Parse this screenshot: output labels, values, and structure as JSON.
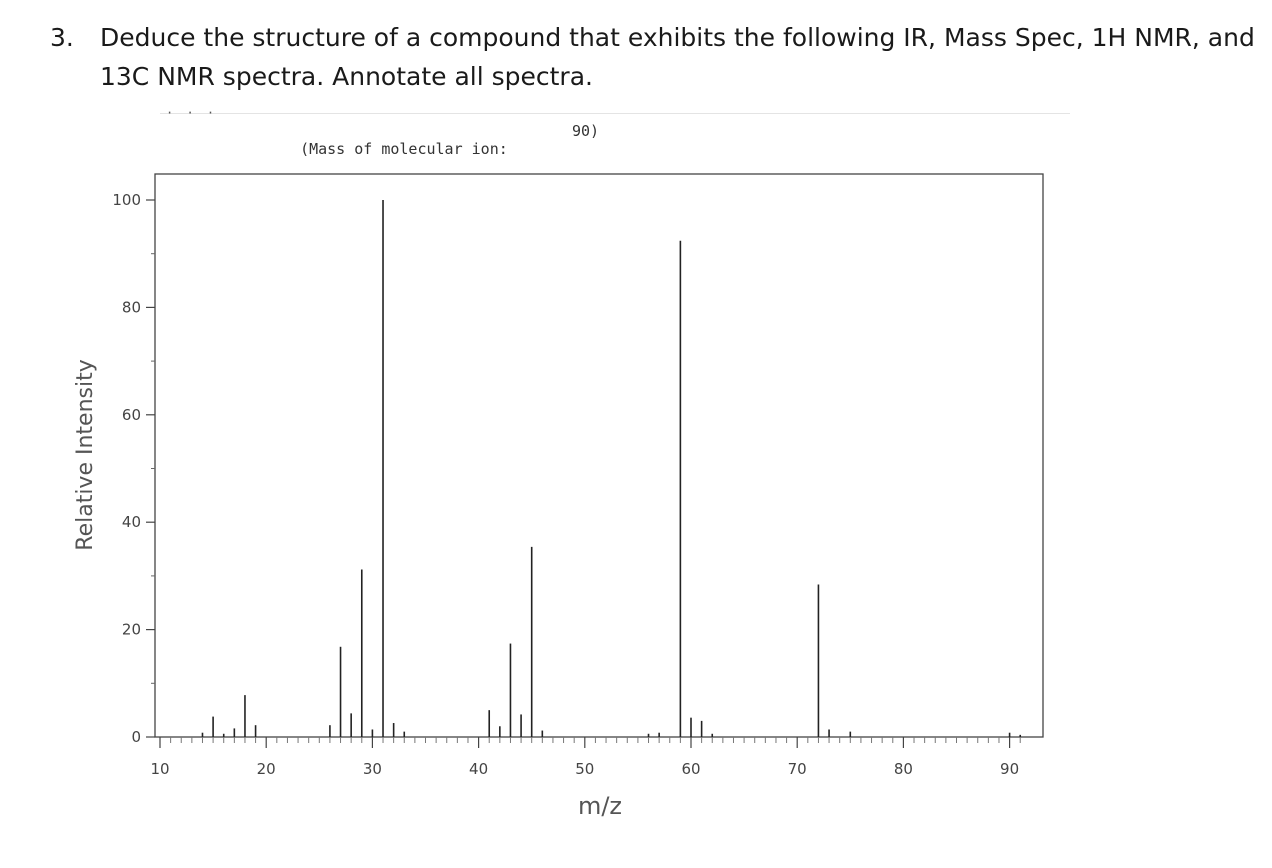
{
  "question": {
    "number": "3.",
    "text": "Deduce the structure of a compound that exhibits the following IR, Mass Spec, 1H NMR, and 13C NMR spectra. Annotate all spectra."
  },
  "header": {
    "molecular_ion_label": "(Mass of molecular ion:",
    "molecular_ion_value": "90)"
  },
  "chart_data": {
    "type": "bar",
    "title": "",
    "xlabel": "m/z",
    "ylabel": "Relative Intensity",
    "xlim": [
      10,
      92
    ],
    "ylim": [
      0,
      105
    ],
    "x_ticks": [
      10,
      20,
      30,
      40,
      50,
      60,
      70,
      80,
      90
    ],
    "y_ticks": [
      0,
      20,
      40,
      60,
      80,
      100
    ],
    "grid": false,
    "legend": "none",
    "peaks": [
      {
        "mz": 14,
        "intensity": 0.8
      },
      {
        "mz": 15,
        "intensity": 3.8
      },
      {
        "mz": 16,
        "intensity": 0.6
      },
      {
        "mz": 17,
        "intensity": 1.6
      },
      {
        "mz": 18,
        "intensity": 7.8
      },
      {
        "mz": 19,
        "intensity": 2.2
      },
      {
        "mz": 26,
        "intensity": 2.2
      },
      {
        "mz": 27,
        "intensity": 16.8
      },
      {
        "mz": 28,
        "intensity": 4.4
      },
      {
        "mz": 29,
        "intensity": 31.2
      },
      {
        "mz": 30,
        "intensity": 1.4
      },
      {
        "mz": 31,
        "intensity": 100
      },
      {
        "mz": 32,
        "intensity": 2.6
      },
      {
        "mz": 33,
        "intensity": 1.0
      },
      {
        "mz": 41,
        "intensity": 5.0
      },
      {
        "mz": 42,
        "intensity": 2.0
      },
      {
        "mz": 43,
        "intensity": 17.4
      },
      {
        "mz": 44,
        "intensity": 4.2
      },
      {
        "mz": 45,
        "intensity": 35.4
      },
      {
        "mz": 46,
        "intensity": 1.2
      },
      {
        "mz": 56,
        "intensity": 0.6
      },
      {
        "mz": 57,
        "intensity": 0.8
      },
      {
        "mz": 59,
        "intensity": 92.4
      },
      {
        "mz": 60,
        "intensity": 3.6
      },
      {
        "mz": 61,
        "intensity": 3.0
      },
      {
        "mz": 62,
        "intensity": 0.6
      },
      {
        "mz": 72,
        "intensity": 28.4
      },
      {
        "mz": 73,
        "intensity": 1.4
      },
      {
        "mz": 75,
        "intensity": 1.0
      },
      {
        "mz": 90,
        "intensity": 0.8
      },
      {
        "mz": 91,
        "intensity": 0.4
      }
    ]
  }
}
